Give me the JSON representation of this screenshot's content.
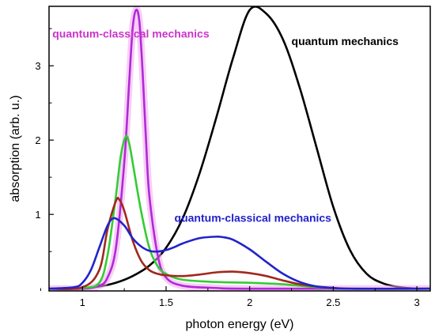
{
  "chart_data": {
    "type": "line",
    "xlabel": "photon energy (eV)",
    "ylabel": "absorption (arb. u.)",
    "xlim": [
      0.8,
      3.08
    ],
    "ylim": [
      -0.03,
      3.8
    ],
    "xticks": [
      1,
      1.5,
      2,
      2.5,
      3
    ],
    "xtick_labels": [
      "1",
      "1.5",
      "2",
      "2.5",
      "3"
    ],
    "yticks": [
      1,
      2,
      3
    ],
    "ytick_labels": [
      "1",
      "2",
      "3"
    ],
    "grid": false,
    "legend": "none",
    "annotations": [
      {
        "text": "quantum-classical mechanics",
        "color": "#cc33cc",
        "x": 0.82,
        "y": 3.38
      },
      {
        "text": "quantum mechanics",
        "color": "#000000",
        "x": 2.25,
        "y": 3.28
      },
      {
        "text": "quantum-classical mechanics",
        "color": "#2222cc",
        "x": 1.55,
        "y": 0.9
      }
    ],
    "series": [
      {
        "color": "#000000",
        "x": [
          0.8,
          1.0,
          1.1,
          1.2,
          1.3,
          1.4,
          1.5,
          1.6,
          1.7,
          1.8,
          1.9,
          2.0,
          2.1,
          2.2,
          2.3,
          2.4,
          2.5,
          2.6,
          2.7,
          2.8,
          2.9,
          3.0,
          3.08
        ],
        "y": [
          0.0,
          0.01,
          0.03,
          0.08,
          0.17,
          0.31,
          0.55,
          0.95,
          1.55,
          2.3,
          3.1,
          3.75,
          3.7,
          3.35,
          2.7,
          1.9,
          1.1,
          0.52,
          0.2,
          0.07,
          0.02,
          0.0,
          0.0
        ]
      },
      {
        "color": "#b02ad6",
        "x": [
          0.8,
          1.0,
          1.1,
          1.15,
          1.2,
          1.25,
          1.28,
          1.3,
          1.32,
          1.34,
          1.36,
          1.38,
          1.4,
          1.45,
          1.5,
          1.6,
          1.8,
          2.0,
          3.08
        ],
        "y": [
          0.0,
          0.0,
          0.04,
          0.15,
          0.55,
          1.7,
          2.8,
          3.5,
          3.75,
          3.6,
          2.9,
          2.0,
          1.25,
          0.45,
          0.15,
          0.04,
          0.01,
          0.0,
          0.0
        ]
      },
      {
        "color": "#33cc33",
        "x": [
          0.8,
          1.0,
          1.1,
          1.15,
          1.2,
          1.23,
          1.26,
          1.28,
          1.3,
          1.35,
          1.4,
          1.45,
          1.5,
          1.6,
          1.8,
          2.0,
          2.2,
          2.4,
          2.6,
          3.08
        ],
        "y": [
          0.0,
          0.01,
          0.08,
          0.45,
          1.25,
          1.8,
          2.05,
          1.95,
          1.7,
          1.05,
          0.55,
          0.3,
          0.2,
          0.12,
          0.09,
          0.08,
          0.06,
          0.02,
          0.0,
          0.0
        ]
      },
      {
        "color": "#a0281e",
        "x": [
          0.8,
          1.0,
          1.1,
          1.15,
          1.2,
          1.22,
          1.25,
          1.3,
          1.35,
          1.4,
          1.45,
          1.5,
          1.6,
          1.7,
          1.8,
          1.9,
          2.0,
          2.1,
          2.2,
          2.3,
          2.4,
          2.6,
          3.08
        ],
        "y": [
          0.0,
          0.02,
          0.25,
          0.8,
          1.18,
          1.2,
          1.05,
          0.65,
          0.38,
          0.25,
          0.2,
          0.18,
          0.17,
          0.19,
          0.22,
          0.23,
          0.21,
          0.17,
          0.11,
          0.06,
          0.03,
          0.0,
          0.0
        ]
      },
      {
        "color": "#2222cc",
        "x": [
          0.8,
          0.95,
          1.0,
          1.05,
          1.1,
          1.15,
          1.19,
          1.25,
          1.3,
          1.35,
          1.4,
          1.45,
          1.5,
          1.55,
          1.6,
          1.7,
          1.8,
          1.85,
          1.9,
          2.0,
          2.1,
          2.2,
          2.3,
          2.4,
          2.5,
          2.6,
          3.08
        ],
        "y": [
          0.0,
          0.02,
          0.08,
          0.25,
          0.55,
          0.85,
          0.95,
          0.85,
          0.68,
          0.57,
          0.51,
          0.5,
          0.52,
          0.56,
          0.61,
          0.68,
          0.7,
          0.69,
          0.66,
          0.53,
          0.36,
          0.2,
          0.09,
          0.03,
          0.01,
          0.0,
          0.0
        ]
      }
    ]
  }
}
